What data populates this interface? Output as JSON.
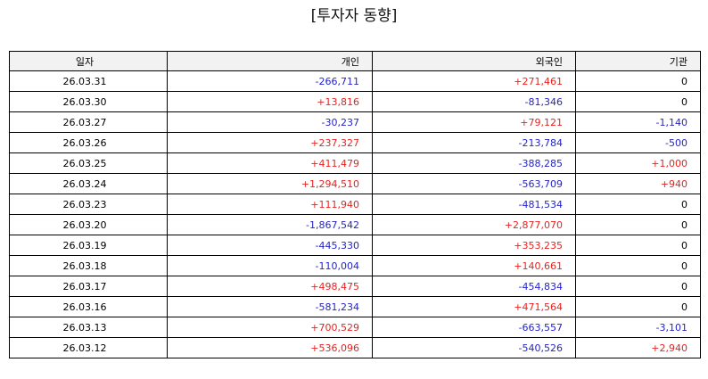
{
  "title": "[투자자 동향]",
  "columns": {
    "date": "일자",
    "individual": "개인",
    "foreign": "외국인",
    "institution": "기관"
  },
  "colors": {
    "positive": "#e8221f",
    "negative": "#2424c8",
    "neutral": "#000000",
    "header_bg": "#f2f2f2"
  },
  "rows": [
    {
      "date": "26.03.31",
      "individual": "-266,711",
      "foreign": "+271,461",
      "institution": "0"
    },
    {
      "date": "26.03.30",
      "individual": "+13,816",
      "foreign": "-81,346",
      "institution": "0"
    },
    {
      "date": "26.03.27",
      "individual": "-30,237",
      "foreign": "+79,121",
      "institution": "-1,140"
    },
    {
      "date": "26.03.26",
      "individual": "+237,327",
      "foreign": "-213,784",
      "institution": "-500"
    },
    {
      "date": "26.03.25",
      "individual": "+411,479",
      "foreign": "-388,285",
      "institution": "+1,000"
    },
    {
      "date": "26.03.24",
      "individual": "+1,294,510",
      "foreign": "-563,709",
      "institution": "+940"
    },
    {
      "date": "26.03.23",
      "individual": "+111,940",
      "foreign": "-481,534",
      "institution": "0"
    },
    {
      "date": "26.03.20",
      "individual": "-1,867,542",
      "foreign": "+2,877,070",
      "institution": "0"
    },
    {
      "date": "26.03.19",
      "individual": "-445,330",
      "foreign": "+353,235",
      "institution": "0"
    },
    {
      "date": "26.03.18",
      "individual": "-110,004",
      "foreign": "+140,661",
      "institution": "0"
    },
    {
      "date": "26.03.17",
      "individual": "+498,475",
      "foreign": "-454,834",
      "institution": "0"
    },
    {
      "date": "26.03.16",
      "individual": "-581,234",
      "foreign": "+471,564",
      "institution": "0"
    },
    {
      "date": "26.03.13",
      "individual": "+700,529",
      "foreign": "-663,557",
      "institution": "-3,101"
    },
    {
      "date": "26.03.12",
      "individual": "+536,096",
      "foreign": "-540,526",
      "institution": "+2,940"
    }
  ]
}
